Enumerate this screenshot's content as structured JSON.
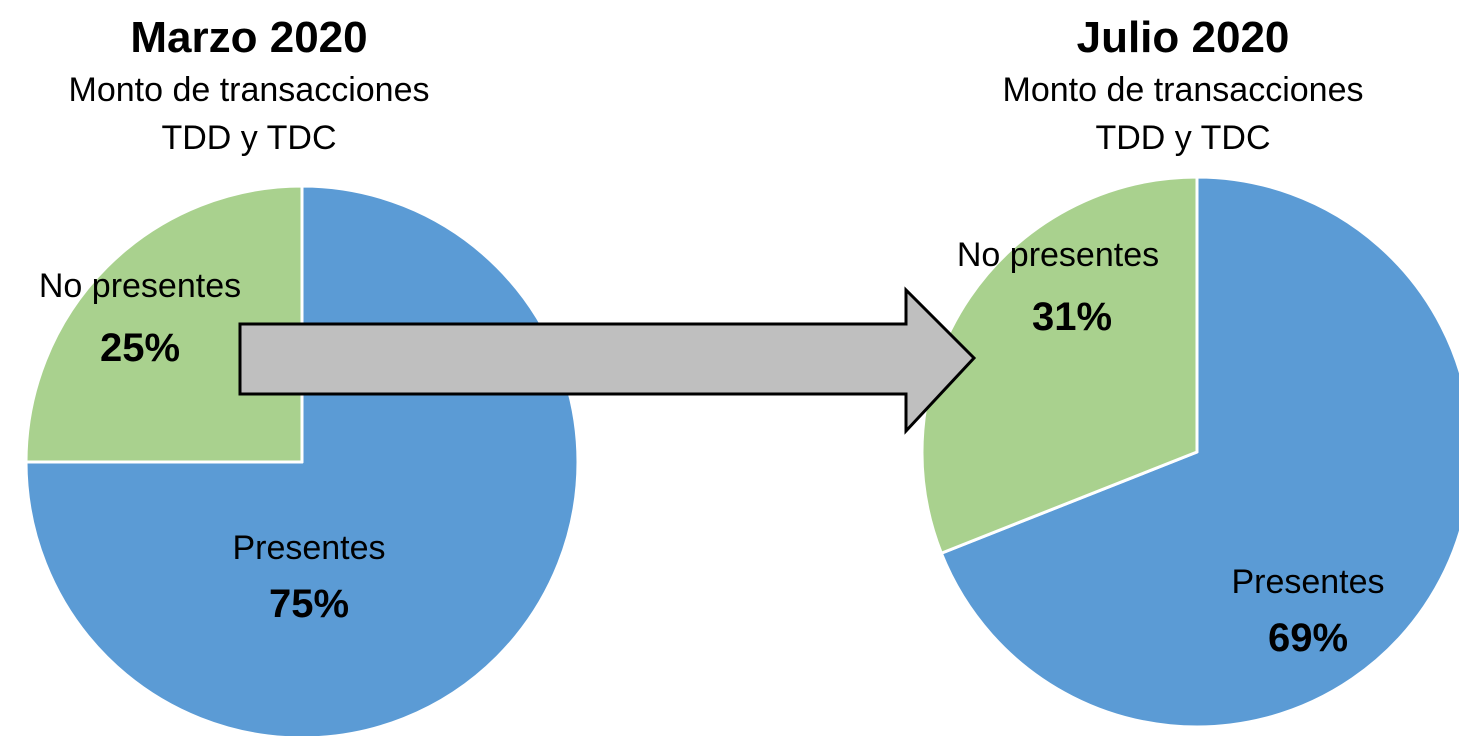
{
  "colors": {
    "presentes": "#5B9BD5",
    "no_presentes": "#A9D18E",
    "arrow_fill": "#BFBFBF",
    "arrow_stroke": "#000000"
  },
  "chart_data": [
    {
      "type": "pie",
      "title": "Marzo 2020",
      "subtitle": [
        "Monto de transacciones",
        "TDD y TDC"
      ],
      "slices": [
        {
          "label": "Presentes",
          "value": 75,
          "display": "75%",
          "color": "#5B9BD5"
        },
        {
          "label": "No presentes",
          "value": 25,
          "display": "25%",
          "color": "#A9D18E"
        }
      ]
    },
    {
      "type": "pie",
      "title": "Julio 2020",
      "subtitle": [
        "Monto de transacciones",
        "TDD y TDC"
      ],
      "slices": [
        {
          "label": "Presentes",
          "value": 69,
          "display": "69%",
          "color": "#5B9BD5"
        },
        {
          "label": "No presentes",
          "value": 31,
          "display": "31%",
          "color": "#A9D18E"
        }
      ]
    }
  ]
}
